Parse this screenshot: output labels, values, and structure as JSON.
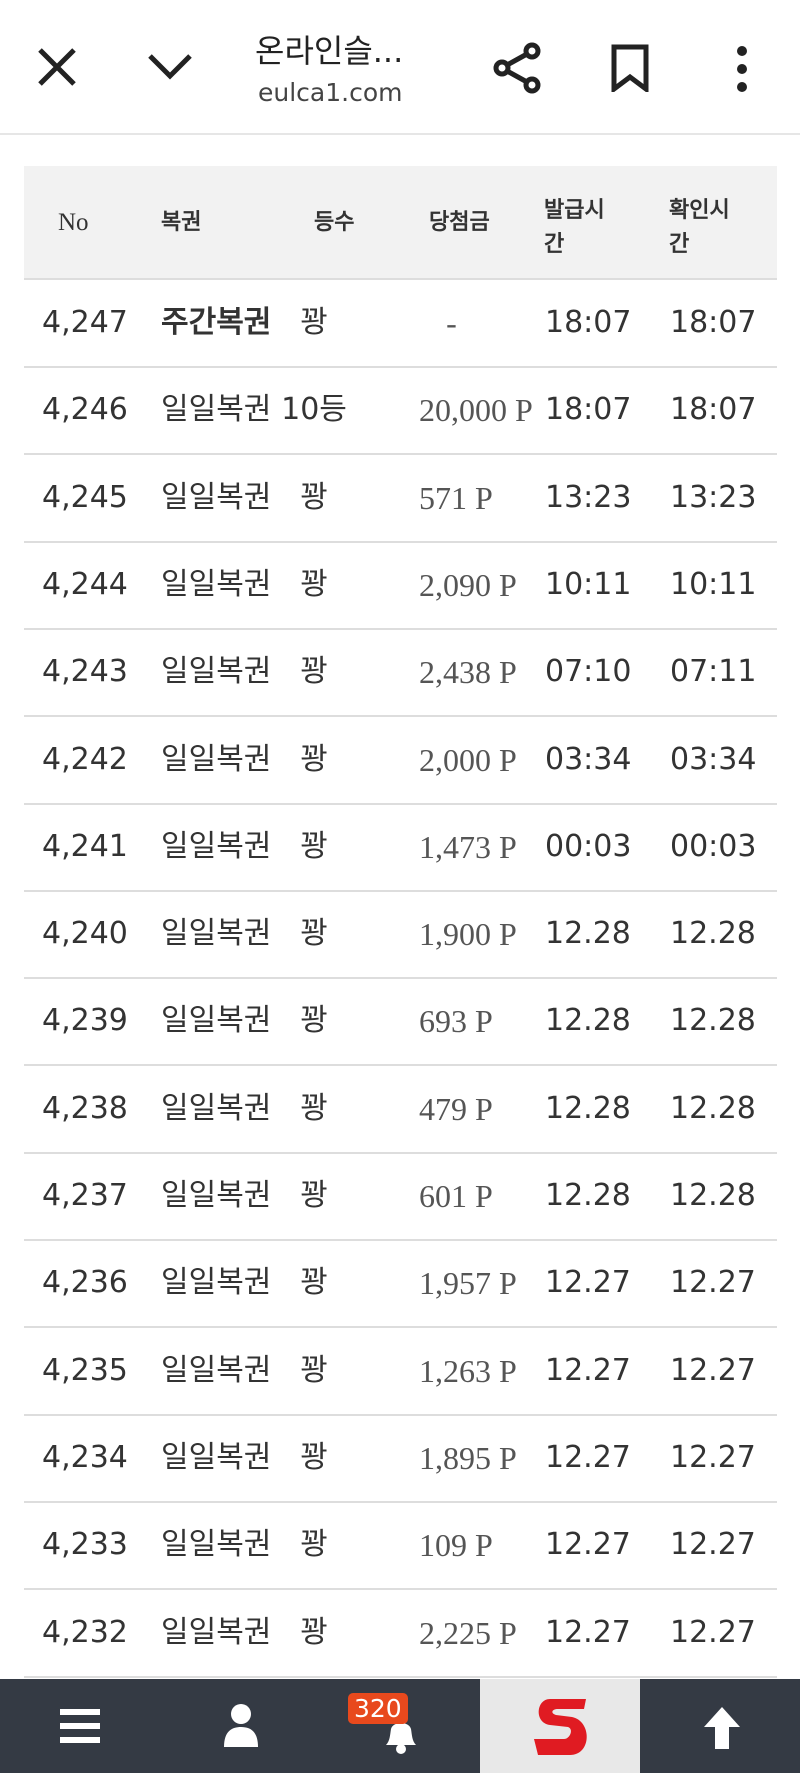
{
  "browser": {
    "title": "온라인슬...",
    "url": "eulca1.com"
  },
  "table": {
    "header": [
      "No",
      "복권",
      "등수",
      "당첨금",
      "발급시간",
      "확인시간"
    ],
    "rows": [
      [
        "4,247",
        "주간복권",
        "꽝",
        "-",
        "18:07",
        "18:07"
      ],
      [
        "4,246",
        "일일복권",
        "10등",
        "20,000 P",
        "18:07",
        "18:07"
      ],
      [
        "4,245",
        "일일복권",
        "꽝",
        "571 P",
        "13:23",
        "13:23"
      ],
      [
        "4,244",
        "일일복권",
        "꽝",
        "2,090 P",
        "10:11",
        "10:11"
      ],
      [
        "4,243",
        "일일복권",
        "꽝",
        "2,438 P",
        "07:10",
        "07:11"
      ],
      [
        "4,242",
        "일일복권",
        "꽝",
        "2,000 P",
        "03:34",
        "03:34"
      ],
      [
        "4,241",
        "일일복권",
        "꽝",
        "1,473 P",
        "00:03",
        "00:03"
      ],
      [
        "4,240",
        "일일복권",
        "꽝",
        "1,900 P",
        "12.28",
        "12.28"
      ],
      [
        "4,239",
        "일일복권",
        "꽝",
        "693 P",
        "12.28",
        "12.28"
      ],
      [
        "4,238",
        "일일복권",
        "꽝",
        "479 P",
        "12.28",
        "12.28"
      ],
      [
        "4,237",
        "일일복권",
        "꽝",
        "601 P",
        "12.28",
        "12.28"
      ],
      [
        "4,236",
        "일일복권",
        "꽝",
        "1,957 P",
        "12.27",
        "12.27"
      ],
      [
        "4,235",
        "일일복권",
        "꽝",
        "1,263 P",
        "12.27",
        "12.27"
      ],
      [
        "4,234",
        "일일복권",
        "꽝",
        "1,895 P",
        "12.27",
        "12.27"
      ],
      [
        "4,233",
        "일일복권",
        "꽝",
        "109 P",
        "12.27",
        "12.27"
      ],
      [
        "4,232",
        "일일복권",
        "꽝",
        "2,225 P",
        "12.27",
        "12.27"
      ]
    ]
  },
  "nav": {
    "badge": "320"
  }
}
